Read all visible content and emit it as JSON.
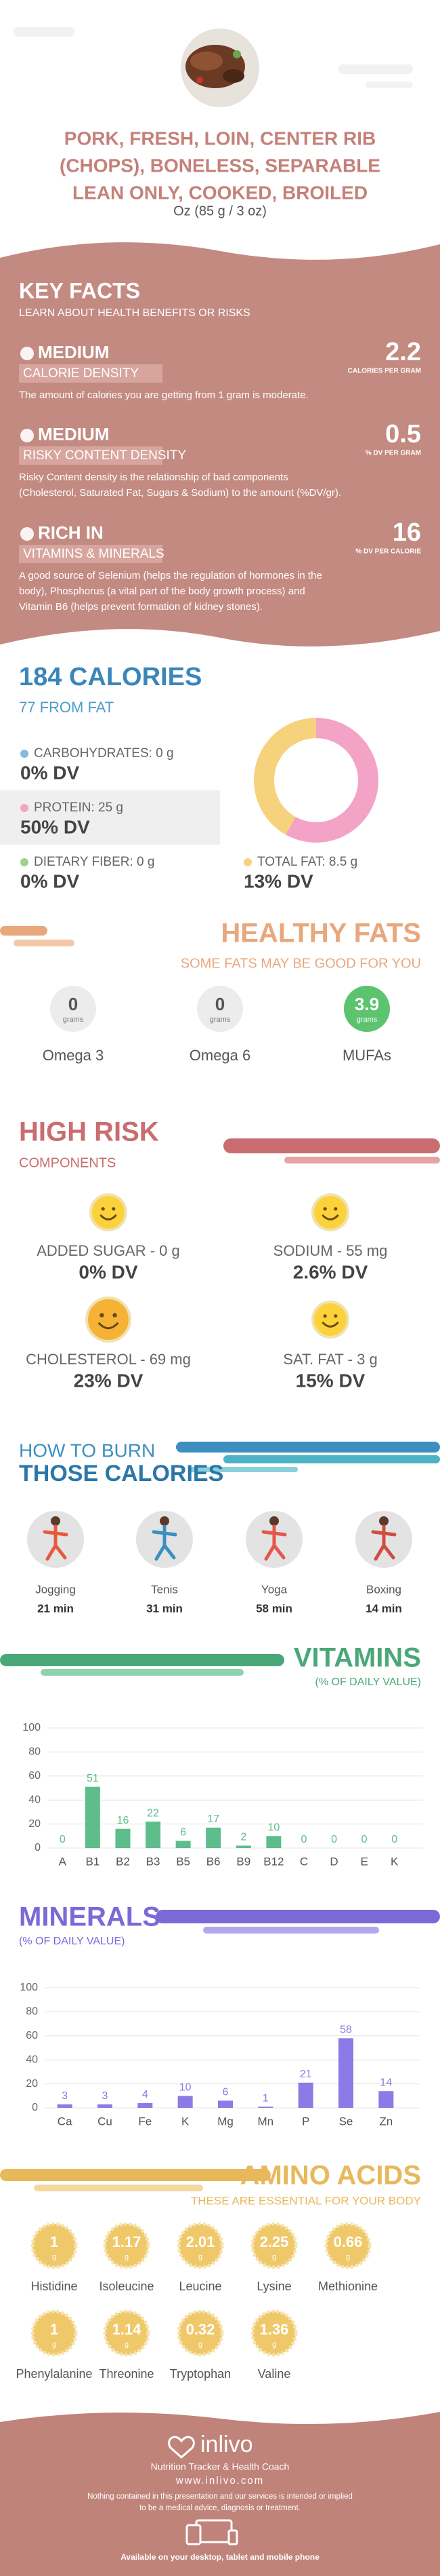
{
  "header": {
    "title_lines": [
      "PORK, FRESH, LOIN, CENTER RIB",
      "(CHOPS), BONELESS, SEPARABLE",
      "LEAN ONLY, COOKED, BROILED"
    ],
    "serving": "Oz (85 g / 3 oz)"
  },
  "key_facts": {
    "title": "KEY FACTS",
    "subtitle": "LEARN ABOUT HEALTH BENEFITS OR RISKS",
    "items": [
      {
        "level": "MEDIUM",
        "label": "CALORIE DENSITY",
        "value": "2.2",
        "unit": "CALORIES PER GRAM",
        "description": [
          "The amount of calories you are getting from 1 gram is moderate."
        ]
      },
      {
        "level": "MEDIUM",
        "label": "RISKY CONTENT DENSITY",
        "value": "0.5",
        "unit": "% DV PER GRAM",
        "description": [
          "Risky Content density is the relationship of bad components",
          "(Cholesterol, Saturated Fat, Sugars & Sodium) to the amount (%DV/gr)."
        ]
      },
      {
        "level": "RICH  IN",
        "label": "VITAMINS & MINERALS",
        "value": "16",
        "unit": "% DV PER CALORIE",
        "description": [
          "A good source of Selenium (helps the regulation of hormones in the",
          "body), Phosphorus (a vital part of the body growth process) and",
          "Vitamin B6 (helps prevent formation of kidney stones)."
        ]
      }
    ]
  },
  "calories": {
    "total": 184,
    "total_label": "184 CALORIES",
    "fat": 77,
    "fat_label": "77 FROM FAT",
    "nutrients": [
      {
        "label": "CARBOHYDRATES: 0 g",
        "dv": "0% DV",
        "color": "#8bb9da"
      },
      {
        "label": "PROTEIN: 25 g",
        "dv": "50% DV",
        "color": "#f3a3c6"
      },
      {
        "label": "DIETARY FIBER: 0 g",
        "dv": "0% DV",
        "color": "#9fd18f"
      },
      {
        "label": "TOTAL FAT: 8.5 g",
        "dv": "13% DV",
        "color": "#f7d27d"
      }
    ]
  },
  "healthy_fats": {
    "title": "HEALTHY FATS",
    "subtitle": "SOME FATS MAY BE GOOD FOR YOU",
    "items": [
      {
        "value": "0",
        "unit": "grams",
        "name": "Omega 3"
      },
      {
        "value": "0",
        "unit": "grams",
        "name": "Omega 6"
      },
      {
        "value": "3.9",
        "unit": "grams",
        "name": "MUFAs"
      }
    ]
  },
  "high_risk": {
    "title": "HIGH RISK",
    "subtitle": "COMPONENTS",
    "items": [
      {
        "label": "ADDED SUGAR - 0 g",
        "dv": "0% DV"
      },
      {
        "label": "SODIUM - 55 mg",
        "dv": "2.6% DV"
      },
      {
        "label": "CHOLESTEROL - 69 mg",
        "dv": "23% DV"
      },
      {
        "label": "SAT. FAT - 3 g",
        "dv": "15% DV"
      }
    ]
  },
  "burn": {
    "title_lines": [
      "HOW TO BURN",
      "THOSE CALORIES"
    ],
    "activities": [
      {
        "name": "Jogging",
        "time": "21 min"
      },
      {
        "name": "Tenis",
        "time": "31 min"
      },
      {
        "name": "Yoga",
        "time": "58 min"
      },
      {
        "name": "Boxing",
        "time": "14 min"
      }
    ]
  },
  "chart_data": [
    {
      "type": "bar",
      "title": "VITAMINS",
      "subtitle": "(% OF DAILY VALUE)",
      "categories": [
        "A",
        "B1",
        "B2",
        "B3",
        "B5",
        "B6",
        "B9",
        "B12",
        "C",
        "D",
        "E",
        "K"
      ],
      "values": [
        0,
        51,
        16,
        22,
        6,
        17,
        2,
        10,
        0,
        0,
        0,
        0
      ],
      "color": "#5dbd8b",
      "ylim": [
        0,
        100
      ],
      "yticks": [
        0,
        20,
        40,
        60,
        80,
        100
      ],
      "grid": true
    },
    {
      "type": "bar",
      "title": "MINERALS",
      "subtitle": "(% OF DAILY VALUE)",
      "categories": [
        "Ca",
        "Cu",
        "Fe",
        "K",
        "Mg",
        "Mn",
        "P",
        "Se",
        "Zn"
      ],
      "values": [
        3,
        3,
        4,
        10,
        6,
        1,
        21,
        58,
        14
      ],
      "color": "#8c7ae6",
      "ylim": [
        0,
        100
      ],
      "yticks": [
        0,
        20,
        40,
        60,
        80,
        100
      ],
      "grid": true
    }
  ],
  "amino_acids": {
    "title": "AMINO ACIDS",
    "subtitle": "THESE ARE ESSENTIAL FOR YOUR BODY",
    "unit": "g",
    "items": [
      {
        "name": "Histidine",
        "value": "1"
      },
      {
        "name": "Isoleucine",
        "value": "1.17"
      },
      {
        "name": "Leucine",
        "value": "2.01"
      },
      {
        "name": "Lysine",
        "value": "2.25"
      },
      {
        "name": "Methionine",
        "value": "0.66"
      },
      {
        "name": "Phenylalanine",
        "value": "1"
      },
      {
        "name": "Threonine",
        "value": "1.14"
      },
      {
        "name": "Tryptophan",
        "value": "0.32"
      },
      {
        "name": "Valine",
        "value": "1.36"
      }
    ]
  },
  "footer": {
    "brand": "inlivo",
    "tagline": "Nutrition Tracker & Health Coach",
    "url": "www.inlivo.com",
    "disclaimer": [
      "Nothing contained in this presentation and our services is intended or implied",
      "to be a medical advice, diagnosis or treatment."
    ],
    "availability": "Available on your desktop, tablet and mobile phone"
  }
}
